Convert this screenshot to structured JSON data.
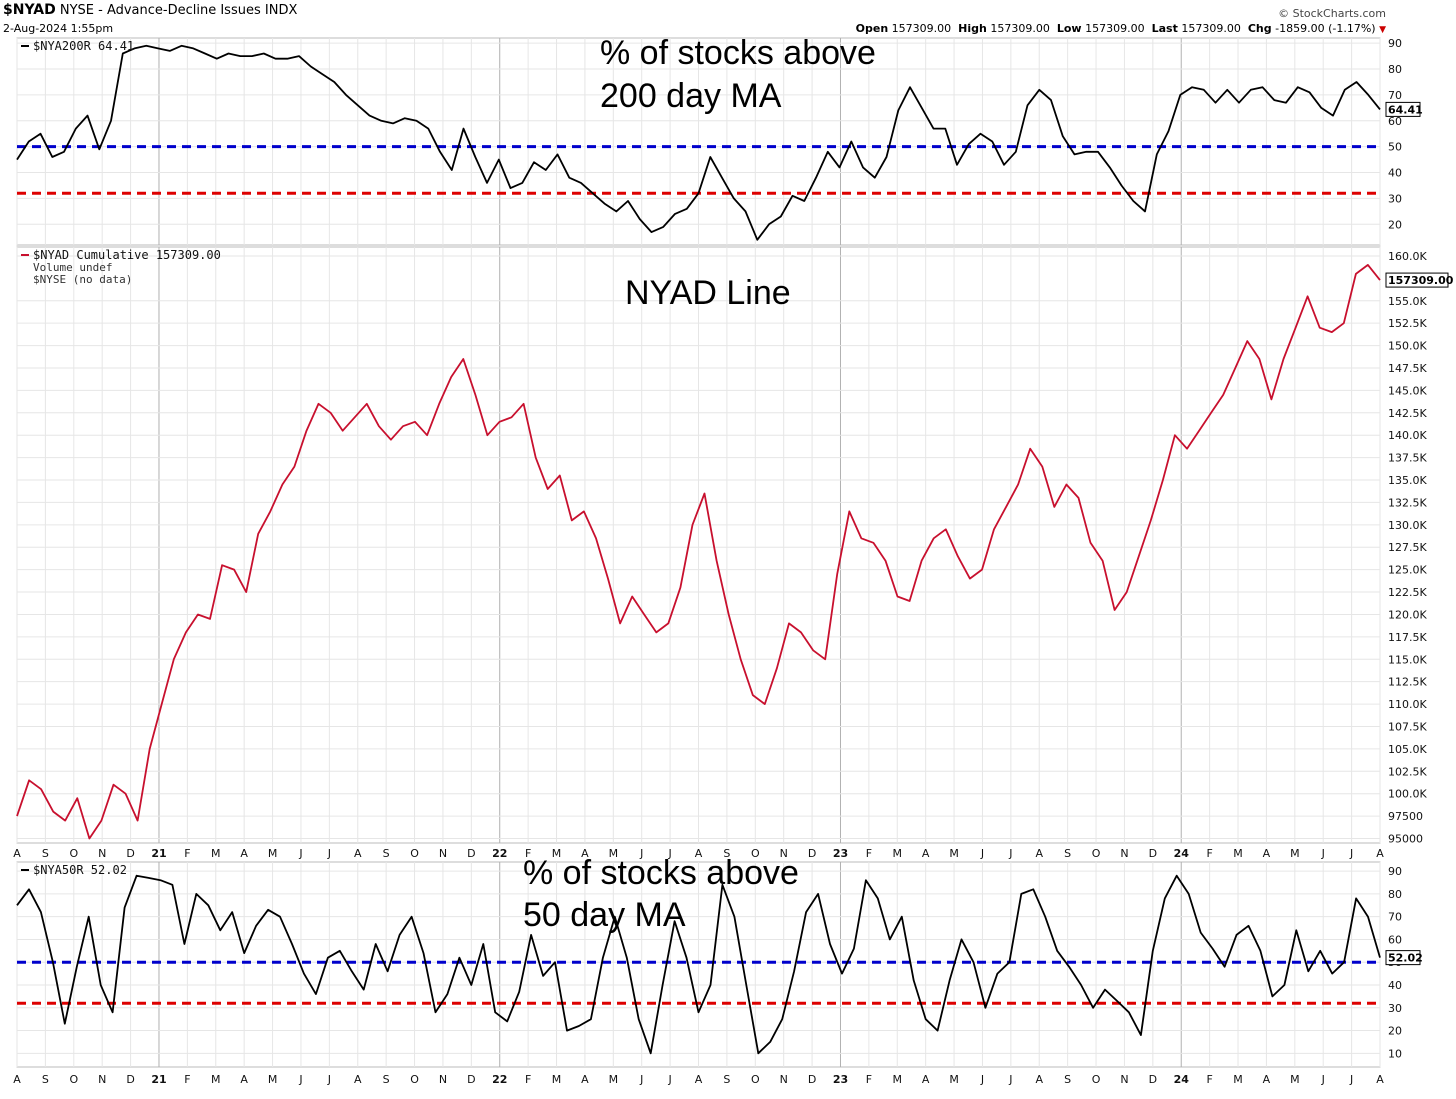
{
  "header": {
    "symbol": "$NYAD",
    "description": "NYSE - Advance-Decline Issues",
    "exchange": "INDX",
    "date": "2-Aug-2024 1:55pm",
    "source": "© StockCharts.com",
    "ohlc": [
      {
        "label": "Open",
        "value": "157309.00"
      },
      {
        "label": "High",
        "value": "157309.00"
      },
      {
        "label": "Low",
        "value": "157309.00"
      },
      {
        "label": "Last",
        "value": "157309.00"
      },
      {
        "label": "Chg",
        "value": "-1859.00 (-1.17%)"
      }
    ],
    "chg_arrow": "▼",
    "chg_arrow_color": "#cc0000"
  },
  "colors": {
    "black_line": "#000000",
    "red_line": "#c8102e",
    "blue_dash": "#0000cc",
    "red_dash": "#dd0000",
    "grid": "#e6e6e6",
    "frame": "#bbbbbb"
  },
  "x_axis_months": [
    "A",
    "S",
    "O",
    "N",
    "D",
    "21",
    "F",
    "M",
    "A",
    "M",
    "J",
    "J",
    "A",
    "S",
    "O",
    "N",
    "D",
    "22",
    "F",
    "M",
    "A",
    "M",
    "J",
    "J",
    "A",
    "S",
    "O",
    "N",
    "D",
    "23",
    "F",
    "M",
    "A",
    "M",
    "J",
    "J",
    "A",
    "S",
    "O",
    "N",
    "D",
    "24",
    "F",
    "M",
    "A",
    "M",
    "J",
    "J",
    "A"
  ],
  "year_markers": [
    "21",
    "22",
    "23",
    "24"
  ],
  "chart_data": [
    {
      "id": "nya200r",
      "type": "line",
      "legend": "$NYA200R 64.41",
      "annotation": [
        "% of stocks above",
        "200 day MA"
      ],
      "last_value": "64.41",
      "ylim": [
        12,
        92
      ],
      "yticks": [
        "90",
        "80",
        "70",
        "60",
        "50",
        "40",
        "30",
        "20"
      ],
      "reference_lines": [
        {
          "value": 50,
          "color": "blue",
          "style": "dashed"
        },
        {
          "value": 32,
          "color": "red",
          "style": "dashed"
        }
      ],
      "series": [
        {
          "values": [
            45,
            52,
            55,
            46,
            48,
            57,
            62,
            49,
            60,
            86,
            88,
            89,
            88,
            87,
            89,
            88,
            86,
            84,
            86,
            85,
            85,
            86,
            84,
            84,
            85,
            81,
            78,
            75,
            70,
            66,
            62,
            60,
            59,
            61,
            60,
            57,
            48,
            41,
            57,
            46,
            36,
            45,
            34,
            36,
            44,
            41,
            47,
            38,
            36,
            32,
            28,
            25,
            29,
            22,
            17,
            19,
            24,
            26,
            32,
            46,
            38,
            30,
            25,
            14,
            20,
            23,
            31,
            29,
            38,
            48,
            42,
            52,
            42,
            38,
            46,
            64,
            73,
            65,
            57,
            57,
            43,
            51,
            55,
            52,
            43,
            48,
            66,
            72,
            68,
            54,
            47,
            48,
            48,
            42,
            35,
            29,
            25,
            47,
            56,
            70,
            73,
            72,
            67,
            72,
            67,
            72,
            73,
            68,
            67,
            73,
            71,
            65,
            62,
            72,
            75,
            70,
            64.41
          ]
        }
      ]
    },
    {
      "id": "nyad",
      "type": "line",
      "legend": "$NYAD Cumulative 157309.00",
      "legend2": "Volume undef",
      "legend3": "$NYSE (no data)",
      "annotation": [
        "NYAD Line"
      ],
      "last_value": "157309.00",
      "ylim": [
        94500,
        161000
      ],
      "yticks": [
        "160.0K",
        "157309.00",
        "155.0K",
        "152.5K",
        "150.0K",
        "147.5K",
        "145.0K",
        "142.5K",
        "140.0K",
        "137.5K",
        "135.0K",
        "132.5K",
        "130.0K",
        "127.5K",
        "125.0K",
        "122.5K",
        "120.0K",
        "117.5K",
        "115.0K",
        "112.5K",
        "110.0K",
        "107.5K",
        "105.0K",
        "102.5K",
        "100.0K",
        "97500",
        "95000"
      ],
      "series": [
        {
          "values": [
            97500,
            101500,
            100500,
            98000,
            97000,
            99500,
            95000,
            97000,
            101000,
            100000,
            97000,
            105000,
            110000,
            115000,
            118000,
            120000,
            119500,
            125500,
            125000,
            122500,
            129000,
            131500,
            134500,
            136500,
            140500,
            143500,
            142500,
            140500,
            142000,
            143500,
            141000,
            139500,
            141000,
            141500,
            140000,
            143500,
            146500,
            148500,
            144500,
            140000,
            141500,
            142000,
            143500,
            137500,
            134000,
            135500,
            130500,
            131500,
            128500,
            124000,
            119000,
            122000,
            120000,
            118000,
            119000,
            123000,
            130000,
            133500,
            126000,
            120000,
            115000,
            111000,
            110000,
            114000,
            119000,
            118000,
            116000,
            115000,
            124500,
            131500,
            128500,
            128000,
            126000,
            122000,
            121500,
            126000,
            128500,
            129500,
            126500,
            124000,
            125000,
            129500,
            132000,
            134500,
            138500,
            136500,
            132000,
            134500,
            133000,
            128000,
            126000,
            120500,
            122500,
            126500,
            130500,
            135000,
            140000,
            138500,
            140500,
            142500,
            144500,
            147500,
            150500,
            148500,
            144000,
            148500,
            152000,
            155500,
            152000,
            151500,
            152500,
            158000,
            159000,
            157309
          ]
        }
      ]
    },
    {
      "id": "nya50r",
      "type": "line",
      "legend": "$NYA50R 52.02",
      "annotation": [
        "% of stocks above",
        "50 day MA"
      ],
      "last_value": "52.02",
      "ylim": [
        4,
        94
      ],
      "yticks": [
        "90",
        "80",
        "70",
        "60",
        "50",
        "40",
        "30",
        "20",
        "10"
      ],
      "reference_lines": [
        {
          "value": 50,
          "color": "blue",
          "style": "dashed"
        },
        {
          "value": 32,
          "color": "red",
          "style": "dashed"
        }
      ],
      "series": [
        {
          "values": [
            75,
            82,
            72,
            50,
            23,
            48,
            70,
            40,
            28,
            74,
            88,
            87,
            86,
            84,
            58,
            80,
            75,
            64,
            72,
            54,
            66,
            73,
            70,
            58,
            45,
            36,
            52,
            55,
            46,
            38,
            58,
            46,
            62,
            70,
            54,
            28,
            36,
            52,
            40,
            58,
            28,
            24,
            37,
            62,
            44,
            50,
            20,
            22,
            25,
            52,
            70,
            52,
            25,
            10,
            40,
            68,
            52,
            28,
            40,
            84,
            70,
            40,
            10,
            15,
            25,
            46,
            72,
            80,
            58,
            45,
            56,
            86,
            78,
            60,
            70,
            42,
            25,
            20,
            42,
            60,
            50,
            30,
            45,
            50,
            80,
            82,
            70,
            55,
            48,
            40,
            30,
            38,
            33,
            28,
            18,
            55,
            78,
            88,
            80,
            63,
            56,
            48,
            62,
            66,
            55,
            35,
            40,
            64,
            46,
            55,
            45,
            50,
            78,
            70,
            52.02
          ]
        }
      ]
    }
  ]
}
